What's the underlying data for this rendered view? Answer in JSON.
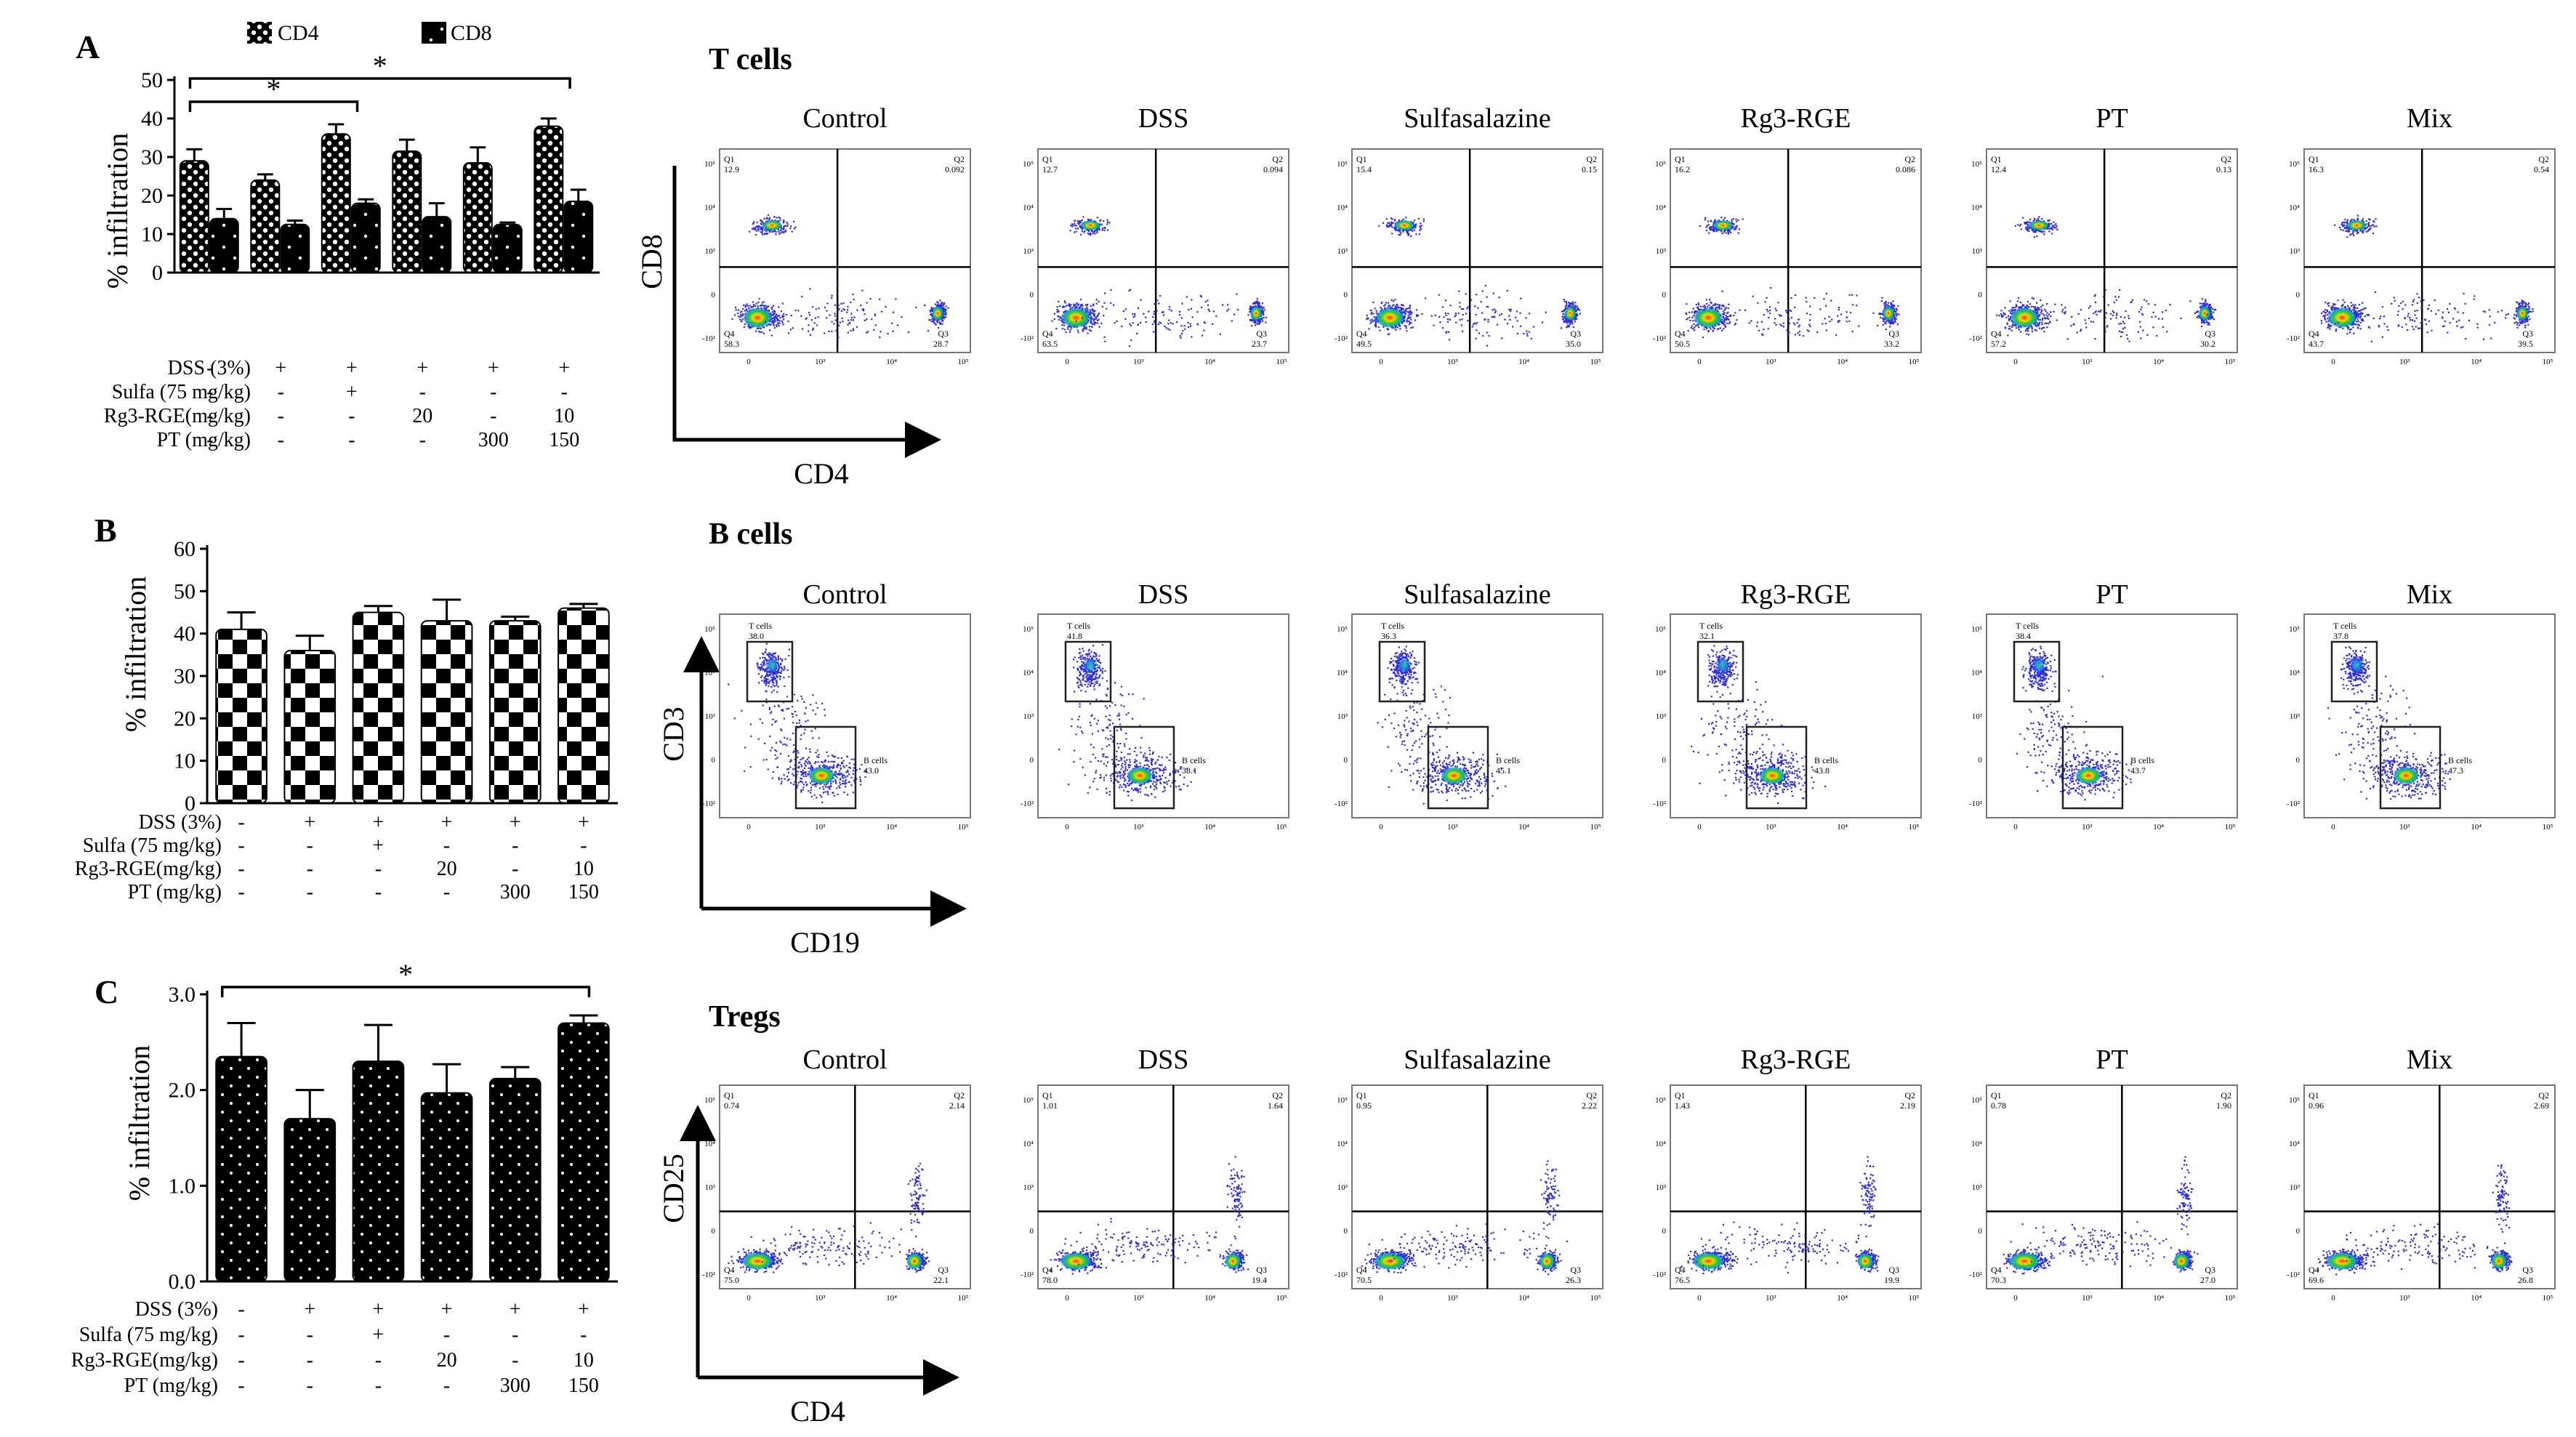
{
  "figure": {
    "panels": [
      {
        "letter": "A",
        "legend": [
          "CD4",
          "CD8"
        ],
        "significance": [
          {
            "from": 0,
            "to": 2,
            "label": "*"
          },
          {
            "from": 0,
            "to": 5,
            "label": "*"
          }
        ],
        "conditions": [
          {
            "label": "DSS (3%)",
            "values": [
              "-",
              "+",
              "+",
              "+",
              "+",
              "+"
            ]
          },
          {
            "label": "Sulfa (75 mg/kg)",
            "values": [
              "-",
              "-",
              "+",
              "-",
              "-",
              "-"
            ]
          },
          {
            "label": "Rg3-RGE(mg/kg)",
            "values": [
              "-",
              "-",
              "-",
              "20",
              "-",
              "10"
            ]
          },
          {
            "label": "PT (mg/kg)",
            "values": [
              "-",
              "-",
              "-",
              "-",
              "300",
              "150"
            ]
          }
        ],
        "flow_title": "T cells",
        "flow_xlabel": "CD4",
        "flow_ylabel": "CD8",
        "flow_plots": [
          {
            "title": "Control",
            "q1": "Q1",
            "q1v": "12.9",
            "q2": "Q2",
            "q2v": "0.092",
            "q3": "Q3",
            "q3v": "28.7",
            "q4": "Q4",
            "q4v": "58.3"
          },
          {
            "title": "DSS",
            "q1": "Q1",
            "q1v": "12.7",
            "q2": "Q2",
            "q2v": "0.094",
            "q3": "Q3",
            "q3v": "23.7",
            "q4": "Q4",
            "q4v": "63.5"
          },
          {
            "title": "Sulfasalazine",
            "q1": "Q1",
            "q1v": "15.4",
            "q2": "Q2",
            "q2v": "0.15",
            "q3": "Q3",
            "q3v": "35.0",
            "q4": "Q4",
            "q4v": "49.5"
          },
          {
            "title": "Rg3-RGE",
            "q1": "Q1",
            "q1v": "16.2",
            "q2": "Q2",
            "q2v": "0.086",
            "q3": "Q3",
            "q3v": "33.2",
            "q4": "Q4",
            "q4v": "50.5"
          },
          {
            "title": "PT",
            "q1": "Q1",
            "q1v": "12.4",
            "q2": "Q2",
            "q2v": "0.13",
            "q3": "Q3",
            "q3v": "30.2",
            "q4": "Q4",
            "q4v": "57.2"
          },
          {
            "title": "Mix",
            "q1": "Q1",
            "q1v": "16.3",
            "q2": "Q2",
            "q2v": "0.54",
            "q3": "Q3",
            "q3v": "39.5",
            "q4": "Q4",
            "q4v": "43.7"
          }
        ]
      },
      {
        "letter": "B",
        "conditions": [
          {
            "label": "DSS (3%)",
            "values": [
              "-",
              "+",
              "+",
              "+",
              "+",
              "+"
            ]
          },
          {
            "label": "Sulfa (75 mg/kg)",
            "values": [
              "-",
              "-",
              "+",
              "-",
              "-",
              "-"
            ]
          },
          {
            "label": "Rg3-RGE(mg/kg)",
            "values": [
              "-",
              "-",
              "-",
              "20",
              "-",
              "10"
            ]
          },
          {
            "label": "PT (mg/kg)",
            "values": [
              "-",
              "-",
              "-",
              "-",
              "300",
              "150"
            ]
          }
        ],
        "flow_title": "B cells",
        "flow_xlabel": "CD19",
        "flow_ylabel": "CD3",
        "flow_plots": [
          {
            "title": "Control",
            "tlabel": "T cells",
            "tval": "38.0",
            "blabel": "B cells",
            "bval": "43.0"
          },
          {
            "title": "DSS",
            "tlabel": "T cells",
            "tval": "41.8",
            "blabel": "B cells",
            "bval": "38.1"
          },
          {
            "title": "Sulfasalazine",
            "tlabel": "T cells",
            "tval": "36.3",
            "blabel": "B cells",
            "bval": "45.1"
          },
          {
            "title": "Rg3-RGE",
            "tlabel": "T cells",
            "tval": "32.1",
            "blabel": "B cells",
            "bval": "43.8"
          },
          {
            "title": "PT",
            "tlabel": "T cells",
            "tval": "38.4",
            "blabel": "B cells",
            "bval": "43.7"
          },
          {
            "title": "Mix",
            "tlabel": "T cells",
            "tval": "37.8",
            "blabel": "B cells",
            "bval": "47.3"
          }
        ]
      },
      {
        "letter": "C",
        "significance": [
          {
            "from": 0,
            "to": 5,
            "label": "*"
          }
        ],
        "conditions": [
          {
            "label": "DSS (3%)",
            "values": [
              "-",
              "+",
              "+",
              "+",
              "+",
              "+"
            ]
          },
          {
            "label": "Sulfa (75 mg/kg)",
            "values": [
              "-",
              "-",
              "+",
              "-",
              "-",
              "-"
            ]
          },
          {
            "label": "Rg3-RGE(mg/kg)",
            "values": [
              "-",
              "-",
              "-",
              "20",
              "-",
              "10"
            ]
          },
          {
            "label": "PT (mg/kg)",
            "values": [
              "-",
              "-",
              "-",
              "-",
              "300",
              "150"
            ]
          }
        ],
        "flow_title": "Tregs",
        "flow_xlabel": "CD4",
        "flow_ylabel": "CD25",
        "flow_plots": [
          {
            "title": "Control",
            "q1": "Q1",
            "q1v": "0.74",
            "q2": "Q2",
            "q2v": "2.14",
            "q3": "Q3",
            "q3v": "22.1",
            "q4": "Q4",
            "q4v": "75.0"
          },
          {
            "title": "DSS",
            "q1": "Q1",
            "q1v": "1.01",
            "q2": "Q2",
            "q2v": "1.64",
            "q3": "Q3",
            "q3v": "19.4",
            "q4": "Q4",
            "q4v": "78.0"
          },
          {
            "title": "Sulfasalazine",
            "q1": "Q1",
            "q1v": "0.95",
            "q2": "Q2",
            "q2v": "2.22",
            "q3": "Q3",
            "q3v": "26.3",
            "q4": "Q4",
            "q4v": "70.5"
          },
          {
            "title": "Rg3-RGE",
            "q1": "Q1",
            "q1v": "1.43",
            "q2": "Q2",
            "q2v": "2.19",
            "q3": "Q3",
            "q3v": "19.9",
            "q4": "Q4",
            "q4v": "76.5"
          },
          {
            "title": "PT",
            "q1": "Q1",
            "q1v": "0.78",
            "q2": "Q2",
            "q2v": "1.90",
            "q3": "Q3",
            "q3v": "27.0",
            "q4": "Q4",
            "q4v": "70.3"
          },
          {
            "title": "Mix",
            "q1": "Q1",
            "q1v": "0.96",
            "q2": "Q2",
            "q2v": "2.69",
            "q3": "Q3",
            "q3v": "26.8",
            "q4": "Q4",
            "q4v": "69.6"
          }
        ]
      }
    ],
    "flow_tick_labels": [
      "10⁵",
      "10⁴",
      "10³",
      "0",
      "-10²"
    ],
    "flow_x_tick_labels": [
      "0",
      "10³",
      "10⁴",
      "10⁵"
    ]
  },
  "chart_data": [
    {
      "type": "bar",
      "panel": "A",
      "ylabel": "% infiltration",
      "ylim": [
        0,
        50
      ],
      "yticks": [
        0,
        10,
        20,
        30,
        40,
        50
      ],
      "categories": [
        "Control",
        "DSS",
        "DSS+Sulfa",
        "DSS+Rg3-RGE 20",
        "DSS+PT 300",
        "DSS+Rg3-RGE 10+PT 150"
      ],
      "series": [
        {
          "name": "CD4",
          "values": [
            29,
            24,
            36,
            31.5,
            28.5,
            38
          ],
          "errors": [
            3,
            1.5,
            2.5,
            3,
            4,
            2
          ]
        },
        {
          "name": "CD8",
          "values": [
            14,
            12.5,
            18,
            14.5,
            12.5,
            18.5
          ],
          "errors": [
            2.5,
            1,
            1,
            3.5,
            0.5,
            3
          ]
        }
      ]
    },
    {
      "type": "bar",
      "panel": "B",
      "ylabel": "% infiltration",
      "ylim": [
        0,
        60
      ],
      "yticks": [
        0,
        10,
        20,
        30,
        40,
        50,
        60
      ],
      "categories": [
        "Control",
        "DSS",
        "DSS+Sulfa",
        "DSS+Rg3-RGE 20",
        "DSS+PT 300",
        "DSS+Rg3-RGE 10+PT 150"
      ],
      "series": [
        {
          "name": "T cells",
          "values": [
            41,
            36,
            45,
            43,
            43,
            46
          ],
          "errors": [
            4,
            3.5,
            1.5,
            5,
            1,
            1
          ]
        }
      ]
    },
    {
      "type": "bar",
      "panel": "C",
      "ylabel": "% infiltration",
      "ylim": [
        0,
        3.0
      ],
      "yticks": [
        "0.0",
        "1.0",
        "2.0",
        "3.0"
      ],
      "categories": [
        "Control",
        "DSS",
        "DSS+Sulfa",
        "DSS+Rg3-RGE 20",
        "DSS+PT 300",
        "DSS+Rg3-RGE 10+PT 150"
      ],
      "series": [
        {
          "name": "Tregs",
          "values": [
            2.35,
            1.7,
            2.3,
            1.97,
            2.12,
            2.7
          ],
          "errors": [
            0.35,
            0.3,
            0.38,
            0.3,
            0.12,
            0.08
          ]
        }
      ]
    }
  ]
}
